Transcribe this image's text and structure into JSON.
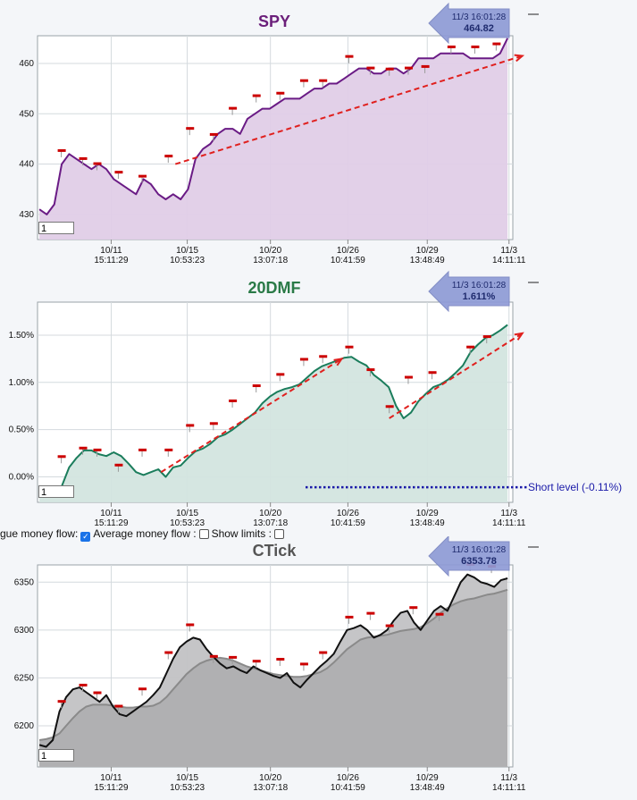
{
  "panels": [
    {
      "id": "spy",
      "title": "SPY",
      "title_color": "#6b1f7a",
      "badge_time": "11/3 16:01:28",
      "badge_value": "464.82",
      "input_value": "1",
      "chart_data": {
        "type": "area",
        "ylim": [
          425,
          465.5
        ],
        "yticks": [
          430,
          440,
          450,
          460
        ],
        "ytick_labels": [
          "430",
          "440",
          "450",
          "460"
        ],
        "xtick_dates": [
          "10/11",
          "10/15",
          "10/20",
          "10/26",
          "10/29",
          "11/3"
        ],
        "xtick_times": [
          "15:11:29",
          "10:53:23",
          "13:07:18",
          "10:41:59",
          "13:48:49",
          "14:11:11"
        ],
        "line_color": "#6a1b85",
        "fill_color": "#e0cde7",
        "series": [
          {
            "values": [
              431,
              430,
              432,
              440,
              442,
              441,
              440,
              439,
              440,
              439,
              437,
              436,
              435,
              434,
              437,
              436,
              434,
              433,
              434,
              433,
              435,
              441,
              443,
              444,
              446,
              447,
              447,
              446,
              449,
              450,
              451,
              451,
              452,
              453,
              453,
              453,
              454,
              455,
              455,
              456,
              456,
              457,
              458,
              459,
              459,
              458,
              458,
              459,
              459,
              458,
              459,
              461,
              461,
              461,
              462,
              462,
              462,
              462,
              461,
              461,
              461,
              461,
              462,
              465
            ]
          }
        ],
        "markers": [
          {
            "x": 0.05,
            "y": 442.6
          },
          {
            "x": 0.095,
            "y": 441
          },
          {
            "x": 0.125,
            "y": 440
          },
          {
            "x": 0.17,
            "y": 438.3
          },
          {
            "x": 0.22,
            "y": 437.5
          },
          {
            "x": 0.275,
            "y": 441.5
          },
          {
            "x": 0.32,
            "y": 447
          },
          {
            "x": 0.37,
            "y": 445.8
          },
          {
            "x": 0.41,
            "y": 451
          },
          {
            "x": 0.46,
            "y": 453.5
          },
          {
            "x": 0.51,
            "y": 454
          },
          {
            "x": 0.56,
            "y": 456.5
          },
          {
            "x": 0.6,
            "y": 456.5
          },
          {
            "x": 0.655,
            "y": 461.3
          },
          {
            "x": 0.7,
            "y": 459
          },
          {
            "x": 0.74,
            "y": 458.8
          },
          {
            "x": 0.78,
            "y": 459
          },
          {
            "x": 0.815,
            "y": 459.3
          },
          {
            "x": 0.87,
            "y": 463.2
          },
          {
            "x": 0.92,
            "y": 463.2
          },
          {
            "x": 0.965,
            "y": 463.8
          }
        ],
        "trend": [
          [
            0.29,
            440
          ],
          [
            1.02,
            461.5
          ]
        ]
      }
    },
    {
      "id": "dmf",
      "title": "20DMF",
      "title_color": "#2a7a47",
      "badge_time": "11/3 16:01:28",
      "badge_value": "1.611%",
      "input_value": "1",
      "chart_data": {
        "type": "area",
        "ylim": [
          -0.27,
          1.85
        ],
        "yticks": [
          0,
          0.5,
          1.0,
          1.5
        ],
        "ytick_labels": [
          "0.00%",
          "0.50%",
          "1.00%",
          "1.50%"
        ],
        "xtick_dates": [
          "10/11",
          "10/15",
          "10/20",
          "10/26",
          "10/29",
          "11/3"
        ],
        "xtick_times": [
          "15:11:29",
          "10:53:23",
          "13:07:18",
          "10:41:59",
          "13:48:49",
          "14:11:11"
        ],
        "line_color": "#1b7d5c",
        "fill_color": "#d3e5df",
        "series": [
          {
            "values": [
              -0.16,
              -0.18,
              -0.15,
              -0.1,
              0.1,
              0.2,
              0.28,
              0.28,
              0.24,
              0.22,
              0.26,
              0.22,
              0.14,
              0.05,
              0.02,
              0.05,
              0.08,
              0.0,
              0.1,
              0.12,
              0.2,
              0.27,
              0.3,
              0.35,
              0.42,
              0.45,
              0.5,
              0.56,
              0.62,
              0.68,
              0.78,
              0.85,
              0.9,
              0.93,
              0.95,
              0.98,
              1.05,
              1.12,
              1.17,
              1.2,
              1.23,
              1.26,
              1.27,
              1.22,
              1.18,
              1.08,
              1.02,
              0.95,
              0.75,
              0.62,
              0.68,
              0.8,
              0.88,
              0.95,
              0.98,
              1.03,
              1.1,
              1.18,
              1.32,
              1.4,
              1.47,
              1.5,
              1.55,
              1.61
            ]
          }
        ],
        "markers": [
          {
            "x": 0.05,
            "y": 0.21
          },
          {
            "x": 0.095,
            "y": 0.3
          },
          {
            "x": 0.125,
            "y": 0.28
          },
          {
            "x": 0.17,
            "y": 0.12
          },
          {
            "x": 0.22,
            "y": 0.28
          },
          {
            "x": 0.275,
            "y": 0.28
          },
          {
            "x": 0.32,
            "y": 0.54
          },
          {
            "x": 0.37,
            "y": 0.56
          },
          {
            "x": 0.41,
            "y": 0.8
          },
          {
            "x": 0.46,
            "y": 0.96
          },
          {
            "x": 0.51,
            "y": 1.08
          },
          {
            "x": 0.56,
            "y": 1.24
          },
          {
            "x": 0.6,
            "y": 1.27
          },
          {
            "x": 0.655,
            "y": 1.37
          },
          {
            "x": 0.7,
            "y": 1.13
          },
          {
            "x": 0.74,
            "y": 0.74
          },
          {
            "x": 0.78,
            "y": 1.05
          },
          {
            "x": 0.83,
            "y": 1.1
          },
          {
            "x": 0.91,
            "y": 1.37
          },
          {
            "x": 0.945,
            "y": 1.48
          }
        ],
        "trend": [
          [
            0.26,
            0.05
          ],
          [
            0.64,
            1.25
          ]
        ],
        "trend2": [
          [
            0.74,
            0.62
          ],
          [
            1.02,
            1.52
          ]
        ],
        "short_level": -0.11,
        "short_label": "Short level (-0.11%)"
      }
    },
    {
      "id": "ctick",
      "title": "CTick",
      "title_color": "#555555",
      "badge_time": "11/3 16:01:28",
      "badge_value": "6353.78",
      "input_value": "1",
      "chart_data": {
        "type": "area",
        "ylim": [
          6157,
          6368
        ],
        "yticks": [
          6200,
          6250,
          6300,
          6350
        ],
        "ytick_labels": [
          "6200",
          "6250",
          "6300",
          "6350"
        ],
        "xtick_dates": [
          "10/11",
          "10/15",
          "10/20",
          "10/26",
          "10/29",
          "11/3"
        ],
        "xtick_times": [
          "15:11:29",
          "10:53:23",
          "13:07:18",
          "10:41:59",
          "13:48:49",
          "14:11:11"
        ],
        "line_color": "#111111",
        "fill_color": "#c2c2c4",
        "avg_color": "#8a8a8a",
        "series": [
          {
            "values": [
              6180,
              6178,
              6185,
              6215,
              6230,
              6238,
              6240,
              6235,
              6230,
              6225,
              6232,
              6220,
              6212,
              6210,
              6215,
              6220,
              6225,
              6232,
              6240,
              6255,
              6270,
              6282,
              6288,
              6292,
              6290,
              6280,
              6272,
              6265,
              6260,
              6262,
              6258,
              6255,
              6262,
              6258,
              6255,
              6252,
              6250,
              6255,
              6245,
              6240,
              6248,
              6255,
              6262,
              6268,
              6275,
              6288,
              6300,
              6302,
              6305,
              6300,
              6292,
              6295,
              6300,
              6310,
              6318,
              6320,
              6308,
              6300,
              6310,
              6320,
              6325,
              6320,
              6335,
              6350,
              6358,
              6355,
              6350,
              6348,
              6345,
              6352,
              6354
            ]
          },
          {
            "values": [
              6185,
              6186,
              6188,
              6192,
              6200,
              6208,
              6215,
              6220,
              6222,
              6222,
              6222,
              6221,
              6220,
              6219,
              6219,
              6220,
              6220,
              6221,
              6224,
              6230,
              6238,
              6246,
              6254,
              6260,
              6265,
              6268,
              6270,
              6271,
              6270,
              6268,
              6265,
              6262,
              6260,
              6258,
              6256,
              6254,
              6253,
              6252,
              6251,
              6251,
              6252,
              6254,
              6256,
              6260,
              6266,
              6273,
              6280,
              6285,
              6290,
              6292,
              6293,
              6294,
              6295,
              6297,
              6299,
              6300,
              6301,
              6303,
              6307,
              6312,
              6318,
              6323,
              6327,
              6330,
              6332,
              6333,
              6335,
              6337,
              6338,
              6340,
              6342
            ]
          }
        ],
        "markers": [
          {
            "x": 0.05,
            "y": 6225
          },
          {
            "x": 0.095,
            "y": 6242
          },
          {
            "x": 0.125,
            "y": 6234
          },
          {
            "x": 0.17,
            "y": 6220
          },
          {
            "x": 0.22,
            "y": 6238
          },
          {
            "x": 0.275,
            "y": 6276
          },
          {
            "x": 0.32,
            "y": 6305
          },
          {
            "x": 0.37,
            "y": 6272
          },
          {
            "x": 0.41,
            "y": 6271
          },
          {
            "x": 0.46,
            "y": 6267
          },
          {
            "x": 0.51,
            "y": 6269
          },
          {
            "x": 0.56,
            "y": 6264
          },
          {
            "x": 0.6,
            "y": 6276
          },
          {
            "x": 0.655,
            "y": 6313
          },
          {
            "x": 0.7,
            "y": 6317
          },
          {
            "x": 0.74,
            "y": 6304
          },
          {
            "x": 0.79,
            "y": 6323
          },
          {
            "x": 0.845,
            "y": 6316
          },
          {
            "x": 0.91,
            "y": 6368
          },
          {
            "x": 0.955,
            "y": 6366
          }
        ]
      }
    }
  ],
  "controls": {
    "label1": "gue money flow:",
    "label2": "Average money flow :",
    "label3": "Show limits :",
    "cb1": true,
    "cb2": false,
    "cb3": false
  }
}
